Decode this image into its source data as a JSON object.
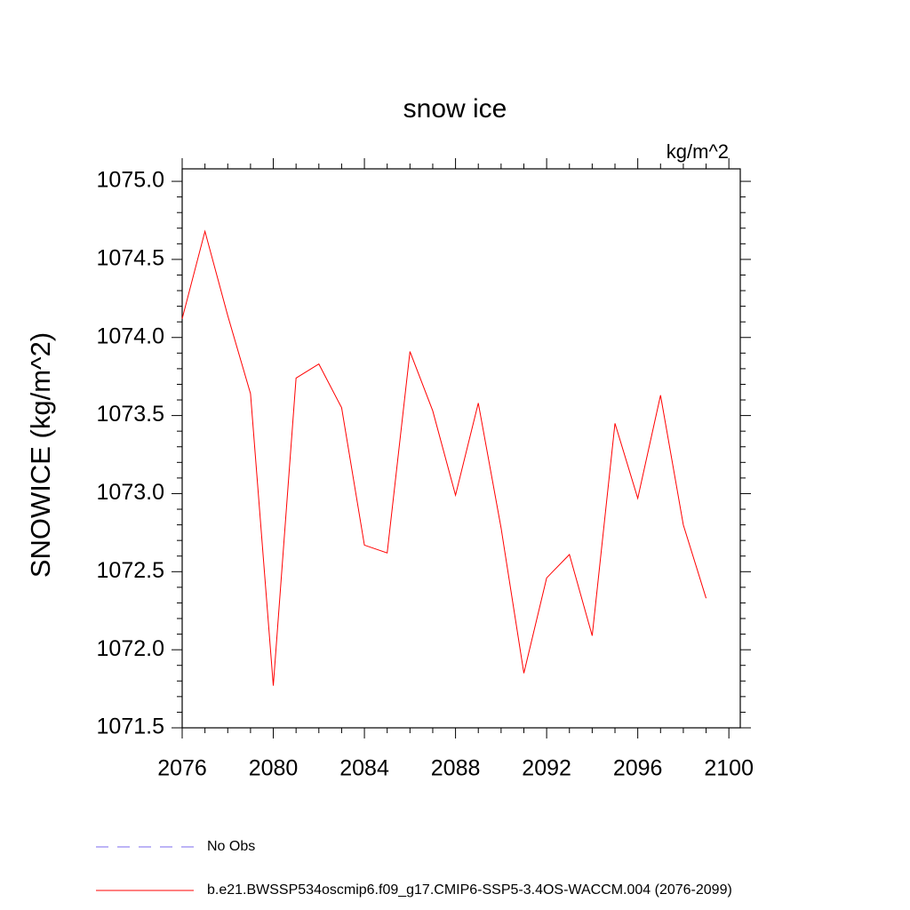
{
  "chart_data": {
    "type": "line",
    "title": "snow ice",
    "units": "kg/m^2",
    "y_label": "SNOWICE  (kg/m^2)",
    "x": [
      2076,
      2077,
      2078,
      2079,
      2080,
      2081,
      2082,
      2083,
      2084,
      2085,
      2086,
      2087,
      2088,
      2089,
      2090,
      2091,
      2092,
      2093,
      2094,
      2095,
      2096,
      2097,
      2098,
      2099
    ],
    "series": [
      {
        "name": "b.e21.BWSSP534oscmip6.f09_g17.CMIP6-SSP5-3.4OS-WACCM.004 (2076-2099)",
        "color": "#ff0000",
        "values": [
          1074.12,
          1074.68,
          1074.14,
          1073.64,
          1071.77,
          1073.74,
          1073.83,
          1073.55,
          1072.67,
          1072.62,
          1073.91,
          1073.53,
          1072.99,
          1073.58,
          1072.78,
          1071.85,
          1072.46,
          1072.61,
          1072.09,
          1073.45,
          1072.97,
          1073.63,
          1072.8,
          1072.33
        ]
      }
    ],
    "legend_entries": [
      {
        "name": "No Obs",
        "color": "#7b68ee",
        "dashed": true
      }
    ],
    "xlim": [
      2076,
      2100.5
    ],
    "ylim": [
      1071.5,
      1075.08
    ],
    "xticks": [
      2076,
      2080,
      2084,
      2088,
      2092,
      2096,
      2100
    ],
    "yticks": [
      {
        "value": 1071.5,
        "label": "1071.5"
      },
      {
        "value": 1072,
        "label": "1072.0"
      },
      {
        "value": 1072.5,
        "label": "1072.5"
      },
      {
        "value": 1073,
        "label": "1073.0"
      },
      {
        "value": 1073.5,
        "label": "1073.5"
      },
      {
        "value": 1074,
        "label": "1074.0"
      },
      {
        "value": 1074.5,
        "label": "1074.5"
      },
      {
        "value": 1075,
        "label": "1075.0"
      }
    ],
    "xminorticks": [
      2077,
      2078,
      2079,
      2081,
      2082,
      2083,
      2085,
      2086,
      2087,
      2089,
      2090,
      2091,
      2093,
      2094,
      2095,
      2097,
      2098,
      2099
    ],
    "yminorticks": [
      1071.6,
      1071.7,
      1071.8,
      1071.9,
      1072.1,
      1072.2,
      1072.3,
      1072.4,
      1072.6,
      1072.7,
      1072.8,
      1072.9,
      1073.1,
      1073.2,
      1073.3,
      1073.4,
      1073.6,
      1073.7,
      1073.8,
      1073.9,
      1074.1,
      1074.2,
      1074.3,
      1074.4,
      1074.6,
      1074.7,
      1074.8,
      1074.9
    ]
  }
}
